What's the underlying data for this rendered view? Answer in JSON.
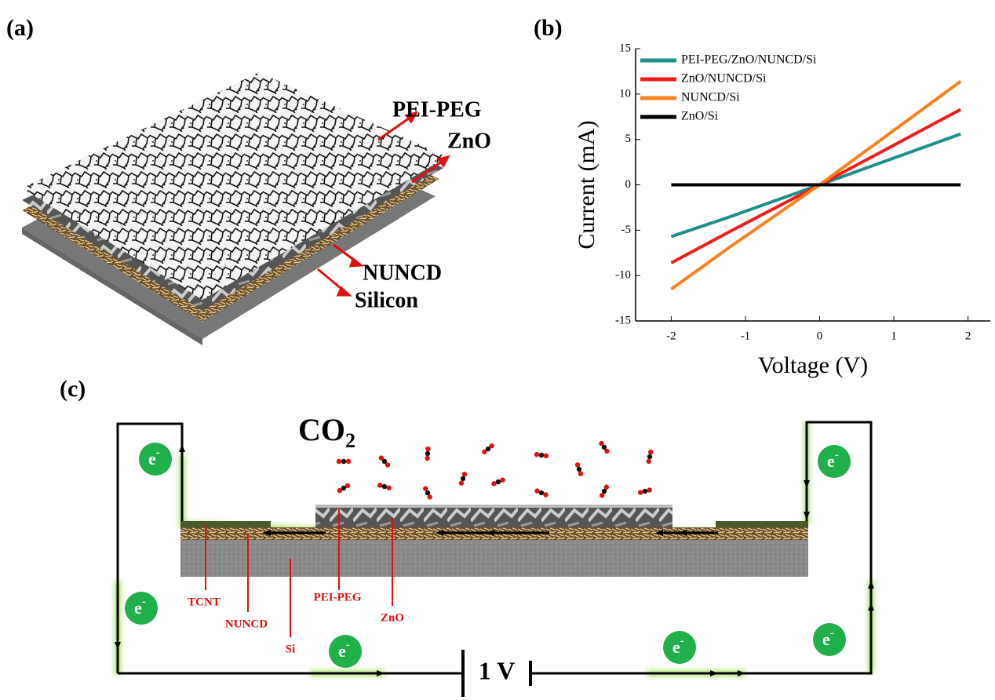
{
  "panels": {
    "a": {
      "label": "(a)",
      "labels": [
        "PEI-PEG",
        "ZnO",
        "NUNCD",
        "Silicon"
      ]
    },
    "b": {
      "label": "(b)"
    },
    "c": {
      "label": "(c)",
      "gas": "CO",
      "gas_sub": "2",
      "electron": "e",
      "electron_sup": "-",
      "voltage": "1 V",
      "layers": [
        "TCNT",
        "NUNCD",
        "Si",
        "PEI-PEG",
        "ZnO"
      ]
    }
  },
  "chart_data": {
    "type": "line",
    "xlabel": "Voltage (V)",
    "ylabel": "Current (mA)",
    "x": [
      -2,
      -1.2,
      0,
      1.9
    ],
    "series": [
      {
        "name": "PEI-PEG/ZnO/NUNCD/Si",
        "color": "#1b9089",
        "values": [
          -5.7,
          -3.5,
          0,
          5.6
        ]
      },
      {
        "name": "ZnO/NUNCD/Si",
        "color": "#f01c1c",
        "values": [
          -8.6,
          -5.1,
          0,
          8.3
        ]
      },
      {
        "name": "NUNCD/Si",
        "color": "#f7821f",
        "values": [
          -11.5,
          -6.8,
          0,
          11.4
        ]
      },
      {
        "name": "ZnO/Si",
        "color": "#000000",
        "values": [
          0,
          0,
          0,
          0
        ]
      }
    ],
    "xlim": [
      -2.48,
      2.3
    ],
    "xticks": [
      -2,
      -1,
      0,
      1,
      2
    ],
    "ylim": [
      -15,
      15
    ],
    "yticks": [
      -15,
      -10,
      -5,
      0,
      5,
      10,
      15
    ],
    "legend": "upper left"
  }
}
